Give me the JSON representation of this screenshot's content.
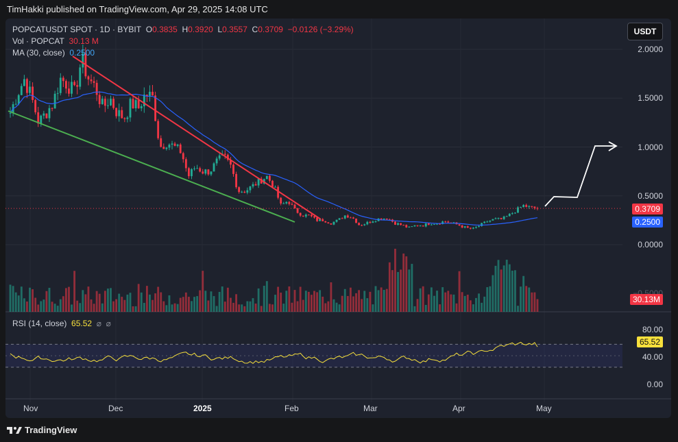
{
  "header": {
    "publisher_line": "TimHakki published on TradingView.com, Apr 29, 2025 14:08 UTC"
  },
  "symbol": {
    "title": "POPCATUSDT SPOT · 1D · BYBIT",
    "open_label": "O",
    "open": "0.3835",
    "high_label": "H",
    "high": "0.3920",
    "low_label": "L",
    "low": "0.3557",
    "close_label": "C",
    "close": "0.3709",
    "change": "−0.0126 (−3.29%)"
  },
  "vol": {
    "label": "Vol · POPCAT",
    "value": "30.13 M"
  },
  "ma": {
    "label": "MA (30, close)",
    "value": "0.2500"
  },
  "currency_button": "USDT",
  "price_axis": [
    "2.0000",
    "1.5000",
    "1.0000",
    "0.5000",
    "0.0000",
    "−0.5000"
  ],
  "badges": {
    "price": "0.3709",
    "ma": "0.2500",
    "vol": "30.13M",
    "rsi": "65.52"
  },
  "rsi": {
    "label": "RSI (14, close)",
    "value": "65.52",
    "icon1": "⌀",
    "icon2": "⌀",
    "axis": [
      "80.00",
      "40.00",
      "0.00"
    ]
  },
  "time_axis": {
    "nov": "Nov",
    "dec": "Dec",
    "y2025": "2025",
    "feb": "Feb",
    "mar": "Mar",
    "apr": "Apr",
    "may": "May"
  },
  "footer": {
    "brand": "TradingView"
  },
  "colors": {
    "bull": "#22ab94",
    "bear": "#f23645",
    "ma": "#2962ff",
    "rsi": "#f7e03c",
    "bg": "#1e222d",
    "trend_down": "#f23645",
    "trend_up": "#4caf50"
  },
  "chart_data": {
    "type": "candlestick",
    "x_range": [
      "2024-10-23",
      "2025-04-29"
    ],
    "y_range": [
      -0.6,
      2.1
    ],
    "close_series": [
      1.35,
      1.55,
      1.7,
      1.5,
      1.25,
      1.35,
      1.45,
      1.7,
      1.65,
      1.55,
      1.9,
      1.7,
      1.6,
      1.4,
      1.5,
      1.35,
      1.3,
      1.45,
      1.4,
      1.55,
      1.5,
      1.0,
      1.05,
      1.0,
      0.95,
      0.7,
      0.8,
      0.75,
      0.75,
      0.85,
      0.9,
      0.8,
      0.55,
      0.55,
      0.6,
      0.65,
      0.7,
      0.6,
      0.4,
      0.45,
      0.35,
      0.3,
      0.3,
      0.25,
      0.25,
      0.22,
      0.25,
      0.3,
      0.28,
      0.2,
      0.22,
      0.25,
      0.27,
      0.27,
      0.22,
      0.2,
      0.17,
      0.2,
      0.2,
      0.22,
      0.22,
      0.24,
      0.22,
      0.2,
      0.17,
      0.16,
      0.2,
      0.24,
      0.26,
      0.26,
      0.3,
      0.35,
      0.4,
      0.38,
      0.3709
    ],
    "ma30_last": 0.25,
    "rsi_last": 65.52,
    "rsi_bands": [
      70,
      30
    ],
    "annotations": [
      "descending red trendline from Nov high to Feb",
      "ascending green support line from Oct to Feb",
      "white projected arrow path to 1.0"
    ]
  }
}
